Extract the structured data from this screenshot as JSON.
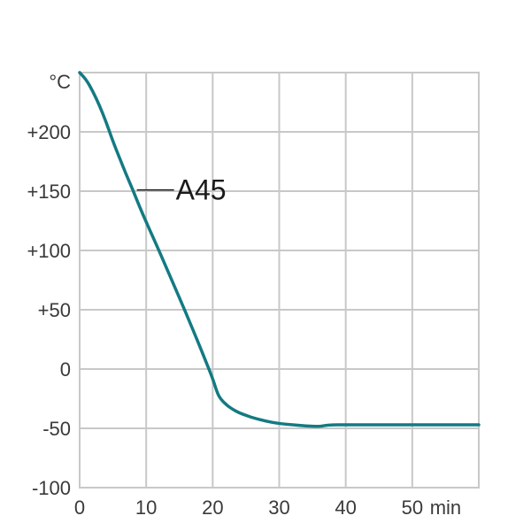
{
  "chart_data": {
    "type": "line",
    "title": "",
    "xlabel": "",
    "ylabel": "",
    "y_unit": "°C",
    "x_unit": "min",
    "xlim": [
      0,
      60
    ],
    "ylim": [
      -100,
      250
    ],
    "grid": true,
    "x_ticks": [
      {
        "value": 0,
        "label": "0"
      },
      {
        "value": 10,
        "label": "10"
      },
      {
        "value": 20,
        "label": "20"
      },
      {
        "value": 30,
        "label": "30"
      },
      {
        "value": 40,
        "label": "40"
      },
      {
        "value": 50,
        "label": "50"
      }
    ],
    "y_ticks": [
      {
        "value": 200,
        "label": "+200"
      },
      {
        "value": 150,
        "label": "+150"
      },
      {
        "value": 100,
        "label": "+100"
      },
      {
        "value": 50,
        "label": "+50"
      },
      {
        "value": 0,
        "label": "0"
      },
      {
        "value": -50,
        "label": "-50"
      },
      {
        "value": -100,
        "label": "-100"
      }
    ],
    "series": [
      {
        "name": "A45",
        "color": "#137a82",
        "x": [
          0,
          1,
          2,
          3,
          4,
          5,
          6,
          7,
          8,
          9,
          10,
          12,
          14,
          16,
          18,
          19,
          20,
          20.5,
          21,
          22,
          23,
          24,
          25,
          26,
          28,
          30,
          32,
          34,
          36,
          37,
          38,
          40,
          45,
          50,
          55,
          60
        ],
        "y": [
          250,
          244,
          234,
          222,
          208,
          192,
          178,
          164,
          151,
          137,
          124,
          99,
          73,
          47,
          20,
          6,
          -8,
          -17,
          -24,
          -30,
          -34,
          -37,
          -39,
          -41,
          -44,
          -46,
          -47,
          -48,
          -48.5,
          -47.5,
          -47,
          -47,
          -47,
          -47,
          -47,
          -47
        ]
      }
    ]
  }
}
